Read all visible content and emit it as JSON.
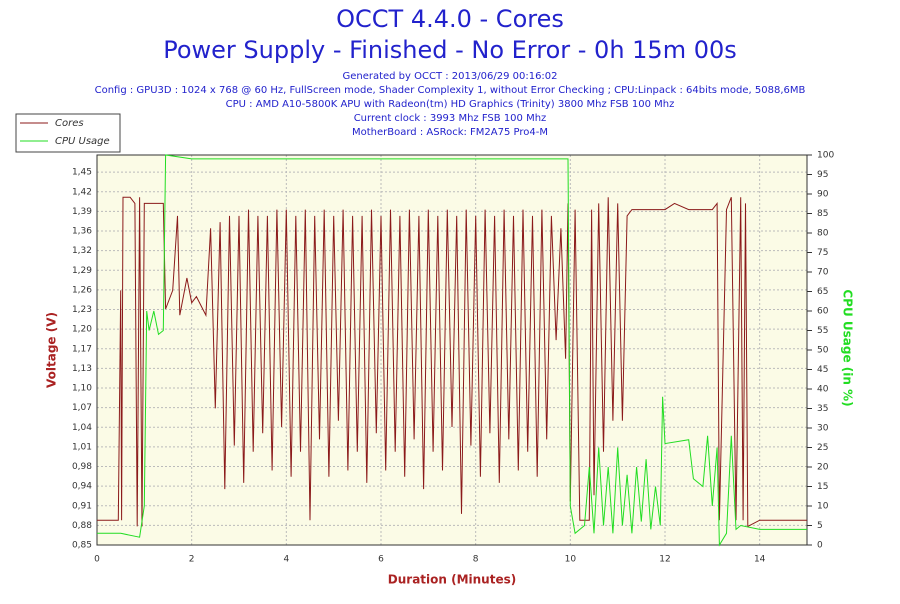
{
  "chart_data": {
    "type": "line",
    "title": "OCCT 4.4.0 - Cores",
    "subtitle": "Power Supply - Finished - No Error - 0h 15m 00s",
    "info": [
      "Generated by OCCT : 2013/06/29 00:16:02",
      "Config : GPU3D : 1024 x 768 @ 60 Hz, FullScreen mode, Shader Complexity 1, without Error Checking ; CPU:Linpack : 64bits mode, 5088,6MB",
      "CPU : AMD A10-5800K APU with Radeon(tm) HD Graphics (Trinity) 3800 Mhz FSB 100 Mhz",
      "Current clock : 3993 Mhz FSB 100 Mhz",
      "MotherBoard : ASRock: FM2A75 Pro4-M"
    ],
    "xlabel": "Duration (Minutes)",
    "ylabel": "Voltage (V)",
    "y2label": "CPU Usage (in %)",
    "xlim": [
      0,
      15
    ],
    "xticks": [
      0,
      2,
      4,
      6,
      8,
      10,
      12,
      14
    ],
    "ylim": [
      0.85,
      1.478
    ],
    "yticks": [
      {
        "value": 0.85,
        "label": "0,85"
      },
      {
        "value": 0.8816,
        "label": "0,88"
      },
      {
        "value": 0.9132,
        "label": "0,91"
      },
      {
        "value": 0.9448,
        "label": "0,94"
      },
      {
        "value": 0.9764,
        "label": "0,98"
      },
      {
        "value": 1.008,
        "label": "1,01"
      },
      {
        "value": 1.0396,
        "label": "1,04"
      },
      {
        "value": 1.0712,
        "label": "1,07"
      },
      {
        "value": 1.1028,
        "label": "1,10"
      },
      {
        "value": 1.1344,
        "label": "1,13"
      },
      {
        "value": 1.166,
        "label": "1,17"
      },
      {
        "value": 1.1976,
        "label": "1,20"
      },
      {
        "value": 1.2292,
        "label": "1,23"
      },
      {
        "value": 1.2608,
        "label": "1,26"
      },
      {
        "value": 1.2924,
        "label": "1,29"
      },
      {
        "value": 1.324,
        "label": "1,32"
      },
      {
        "value": 1.3556,
        "label": "1,36"
      },
      {
        "value": 1.3872,
        "label": "1,39"
      },
      {
        "value": 1.4188,
        "label": "1,42"
      },
      {
        "value": 1.4504,
        "label": "1,45"
      }
    ],
    "y2lim": [
      0,
      100
    ],
    "y2ticks": [
      0,
      5,
      10,
      15,
      20,
      25,
      30,
      35,
      40,
      45,
      50,
      55,
      60,
      65,
      70,
      75,
      80,
      85,
      90,
      95,
      100
    ],
    "grid": true,
    "legend": "top-left",
    "series": [
      {
        "name": "Cores",
        "color": "#8b1a1a",
        "x": [
          0,
          0.3,
          0.45,
          0.5,
          0.52,
          0.55,
          0.7,
          0.8,
          0.85,
          0.9,
          0.95,
          1.0,
          1.4,
          1.45,
          1.6,
          1.7,
          1.75,
          1.9,
          2.0,
          2.1,
          2.3,
          2.4,
          2.5,
          2.6,
          2.7,
          2.8,
          2.9,
          3.0,
          3.1,
          3.2,
          3.3,
          3.4,
          3.5,
          3.6,
          3.7,
          3.8,
          3.9,
          4.0,
          4.1,
          4.2,
          4.3,
          4.4,
          4.5,
          4.6,
          4.7,
          4.8,
          4.9,
          5.0,
          5.1,
          5.2,
          5.3,
          5.4,
          5.5,
          5.6,
          5.7,
          5.8,
          5.9,
          6.0,
          6.1,
          6.2,
          6.3,
          6.4,
          6.5,
          6.6,
          6.7,
          6.8,
          6.9,
          7.0,
          7.1,
          7.2,
          7.3,
          7.4,
          7.5,
          7.6,
          7.7,
          7.8,
          7.9,
          8.0,
          8.1,
          8.2,
          8.3,
          8.4,
          8.5,
          8.6,
          8.7,
          8.8,
          8.9,
          9.0,
          9.1,
          9.2,
          9.3,
          9.4,
          9.5,
          9.6,
          9.7,
          9.8,
          9.9,
          9.95,
          10.0,
          10.1,
          10.2,
          10.4,
          10.45,
          10.5,
          10.6,
          10.7,
          10.8,
          10.9,
          11.0,
          11.1,
          11.2,
          11.3,
          12.0,
          12.2,
          12.5,
          13.0,
          13.1,
          13.15,
          13.3,
          13.4,
          13.5,
          13.6,
          13.65,
          13.7,
          13.75,
          14.0,
          15.0
        ],
        "values": [
          0.89,
          0.89,
          0.89,
          1.26,
          0.89,
          1.41,
          1.41,
          1.4,
          0.88,
          1.41,
          0.88,
          1.4,
          1.4,
          1.23,
          1.26,
          1.38,
          1.22,
          1.28,
          1.24,
          1.25,
          1.22,
          1.36,
          1.07,
          1.37,
          0.94,
          1.38,
          1.01,
          1.38,
          0.95,
          1.39,
          1.0,
          1.38,
          1.03,
          1.38,
          0.97,
          1.39,
          1.04,
          1.39,
          0.96,
          1.38,
          1.0,
          1.39,
          0.89,
          1.38,
          1.02,
          1.39,
          0.96,
          1.38,
          1.05,
          1.39,
          0.97,
          1.38,
          1.0,
          1.38,
          0.95,
          1.39,
          1.03,
          1.38,
          0.97,
          1.39,
          1.0,
          1.38,
          0.96,
          1.39,
          1.02,
          1.38,
          0.94,
          1.39,
          1.0,
          1.38,
          0.97,
          1.39,
          1.04,
          1.38,
          0.9,
          1.39,
          1.01,
          1.38,
          0.96,
          1.39,
          1.03,
          1.38,
          0.95,
          1.39,
          1.02,
          1.38,
          0.97,
          1.39,
          1.0,
          1.38,
          0.96,
          1.39,
          1.02,
          1.38,
          1.18,
          1.36,
          1.15,
          1.4,
          0.92,
          1.39,
          0.89,
          0.89,
          1.39,
          0.93,
          1.4,
          1.0,
          1.41,
          1.05,
          1.4,
          1.05,
          1.38,
          1.39,
          1.39,
          1.4,
          1.39,
          1.39,
          1.4,
          0.89,
          1.39,
          1.41,
          0.89,
          1.41,
          0.89,
          1.4,
          0.88,
          0.89,
          0.89
        ]
      },
      {
        "name": "CPU Usage",
        "color": "#22dd22",
        "axis": "y2",
        "x": [
          0,
          0.5,
          0.9,
          1.0,
          1.05,
          1.1,
          1.2,
          1.3,
          1.4,
          1.45,
          2,
          4,
          6,
          8,
          9.95,
          10.0,
          10.1,
          10.3,
          10.4,
          10.5,
          10.6,
          10.7,
          10.8,
          10.9,
          11.0,
          11.1,
          11.2,
          11.3,
          11.4,
          11.5,
          11.6,
          11.7,
          11.8,
          11.9,
          11.95,
          12.0,
          12.5,
          12.6,
          12.8,
          12.9,
          13.0,
          13.1,
          13.15,
          13.3,
          13.4,
          13.5,
          13.6,
          14,
          15
        ],
        "values": [
          3,
          3,
          2,
          10,
          60,
          55,
          60,
          54,
          55,
          100,
          99,
          99,
          99,
          99,
          99,
          10,
          3,
          5,
          20,
          3,
          25,
          5,
          20,
          3,
          25,
          5,
          18,
          3,
          20,
          6,
          22,
          4,
          15,
          5,
          38,
          26,
          27,
          17,
          15,
          28,
          10,
          25,
          0,
          3,
          28,
          4,
          5,
          4,
          4
        ]
      }
    ]
  }
}
